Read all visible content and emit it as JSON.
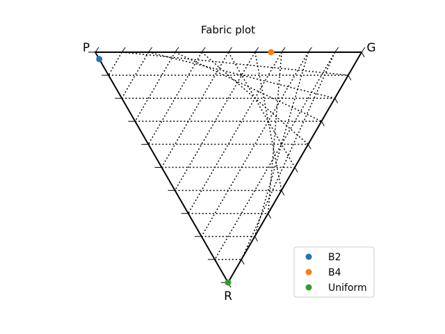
{
  "chart_data": {
    "type": "scatter",
    "title": "Fabric plot",
    "coordinate_system": "ternary",
    "vertices": {
      "top_left": "P",
      "top_right": "G",
      "bottom": "R"
    },
    "grid": true,
    "grid_divisions": 10,
    "series": [
      {
        "name": "B2",
        "color": "#1f77b4",
        "points": [
          {
            "P": 0.97,
            "G": 0.0,
            "R": 0.03
          }
        ]
      },
      {
        "name": "B4",
        "color": "#ff7f0e",
        "points": [
          {
            "P": 0.34,
            "G": 0.66,
            "R": 0.0
          }
        ]
      },
      {
        "name": "Uniform",
        "color": "#2ca02c",
        "points": [
          {
            "P": 0.0,
            "G": 0.0,
            "R": 1.0
          }
        ]
      }
    ],
    "legend": {
      "placement": "lower-right"
    }
  }
}
